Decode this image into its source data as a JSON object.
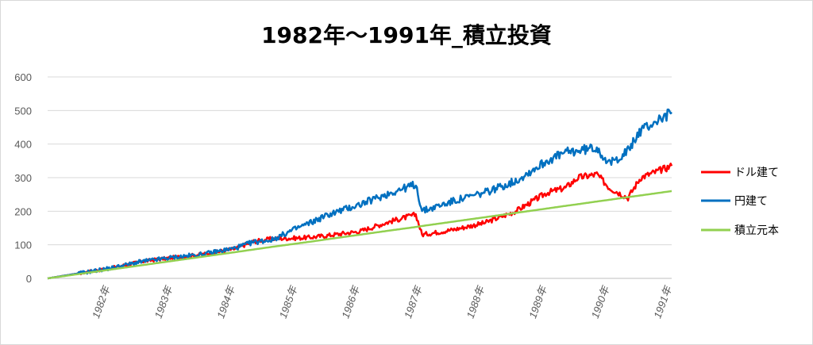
{
  "chart_data": {
    "type": "line",
    "title": "1982年～1991年_積立投資",
    "xlabel": "",
    "ylabel": "",
    "ylim": [
      0,
      600
    ],
    "yticks": [
      "0",
      "100",
      "200",
      "300",
      "400",
      "500",
      "600"
    ],
    "xticks": [
      "1982年",
      "1983年",
      "1984年",
      "1985年",
      "1986年",
      "1987年",
      "1988年",
      "1989年",
      "1990年",
      "1991年"
    ],
    "grid": true,
    "legend_position": "right",
    "x": [
      1981.0,
      1981.5,
      1982.0,
      1982.5,
      1983.0,
      1983.5,
      1984.0,
      1984.3,
      1984.6,
      1985.0,
      1985.2,
      1985.5,
      1986.0,
      1986.5,
      1986.9,
      1987.0,
      1987.5,
      1988.0,
      1988.5,
      1989.0,
      1989.3,
      1989.5,
      1989.8,
      1990.0,
      1990.3,
      1990.5,
      1991.0
    ],
    "series": [
      {
        "name": "ドル建て",
        "color": "#ff0000",
        "values": [
          0,
          15,
          30,
          50,
          62,
          72,
          88,
          110,
          118,
          120,
          122,
          128,
          140,
          170,
          190,
          130,
          145,
          165,
          200,
          255,
          270,
          300,
          310,
          270,
          240,
          300,
          335
        ]
      },
      {
        "name": "円建て",
        "color": "#0070c0",
        "values": [
          0,
          15,
          30,
          50,
          62,
          72,
          90,
          108,
          115,
          150,
          165,
          190,
          220,
          255,
          280,
          200,
          230,
          255,
          290,
          350,
          375,
          380,
          390,
          340,
          380,
          440,
          495
        ]
      },
      {
        "name": "積立元本",
        "color": "#92d050",
        "values": [
          0,
          13,
          26,
          39,
          52,
          65,
          78,
          86,
          94,
          104,
          109,
          117,
          130,
          143,
          153,
          156,
          169,
          182,
          195,
          208,
          216,
          221,
          229,
          234,
          242,
          247,
          260
        ]
      }
    ]
  }
}
